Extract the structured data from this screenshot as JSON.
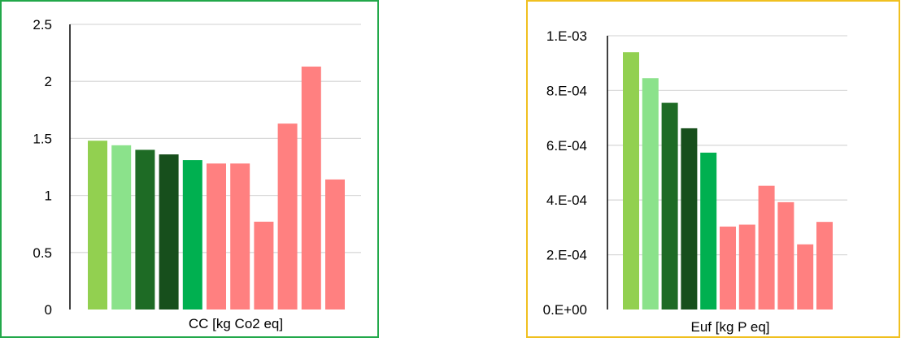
{
  "colors": {
    "bar_palette": [
      "#92d050",
      "#8be28b",
      "#1e6b25",
      "#174f1c",
      "#00b050",
      "#ff8080"
    ],
    "left_border": "#22a84a",
    "right_border": "#f0c020",
    "gridline": "#d9d9d9",
    "axis": "#000000"
  },
  "chart_data": [
    {
      "type": "bar",
      "xlabel": "CC [kg Co2 eq]",
      "ylim": [
        0,
        2.5
      ],
      "ticks": [
        "0",
        "0.5",
        "1",
        "1.5",
        "2",
        "2.5"
      ],
      "values": [
        1.48,
        1.44,
        1.4,
        1.36,
        1.31,
        1.28,
        1.28,
        0.77,
        1.63,
        2.13,
        1.14
      ],
      "bar_colors": [
        "#92d050",
        "#8be28b",
        "#1e6b25",
        "#174f1c",
        "#00b050",
        "#ff8080",
        "#ff8080",
        "#ff8080",
        "#ff8080",
        "#ff8080",
        "#ff8080"
      ],
      "grid": true,
      "legend": "none"
    },
    {
      "type": "bar",
      "xlabel": "Euf [kg P eq]",
      "ylim": [
        0,
        0.001
      ],
      "ticks": [
        "0.E+00",
        "2.E-04",
        "4.E-04",
        "6.E-04",
        "8.E-04",
        "1.E-03"
      ],
      "values": [
        0.00094,
        0.000845,
        0.000755,
        0.000662,
        0.000573,
        0.000303,
        0.00031,
        0.000452,
        0.000392,
        0.000238,
        0.00032
      ],
      "bar_colors": [
        "#92d050",
        "#8be28b",
        "#1e6b25",
        "#174f1c",
        "#00b050",
        "#ff8080",
        "#ff8080",
        "#ff8080",
        "#ff8080",
        "#ff8080",
        "#ff8080"
      ],
      "grid": true,
      "legend": "none"
    }
  ]
}
